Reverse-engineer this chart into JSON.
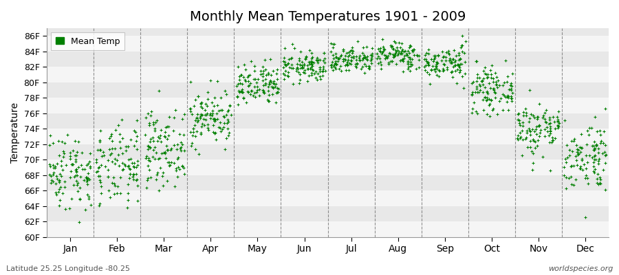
{
  "title": "Monthly Mean Temperatures 1901 - 2009",
  "ylabel": "Temperature",
  "footer_left": "Latitude 25.25 Longitude -80.25",
  "footer_right": "worldspecies.org",
  "legend_label": "Mean Temp",
  "dot_color": "#008000",
  "background_color": "#ffffff",
  "band_color_light": "#f5f5f5",
  "band_color_dark": "#e8e8e8",
  "ylim": [
    60,
    87
  ],
  "yticks": [
    60,
    62,
    64,
    66,
    68,
    70,
    72,
    74,
    76,
    78,
    80,
    82,
    84,
    86
  ],
  "months": [
    "Jan",
    "Feb",
    "Mar",
    "Apr",
    "May",
    "Jun",
    "Jul",
    "Aug",
    "Sep",
    "Oct",
    "Nov",
    "Dec"
  ],
  "mean_temps_F": [
    68.5,
    69.0,
    71.5,
    75.5,
    79.5,
    82.0,
    83.0,
    83.5,
    82.5,
    79.0,
    74.0,
    70.5
  ],
  "std_temps": [
    2.5,
    2.6,
    2.4,
    1.8,
    1.4,
    1.0,
    0.9,
    0.9,
    1.1,
    1.4,
    1.8,
    2.3
  ],
  "n_years": 109,
  "seed": 42,
  "vline_color": "#666666",
  "title_fontsize": 14,
  "axis_fontsize": 9,
  "xlabel_fontsize": 10
}
